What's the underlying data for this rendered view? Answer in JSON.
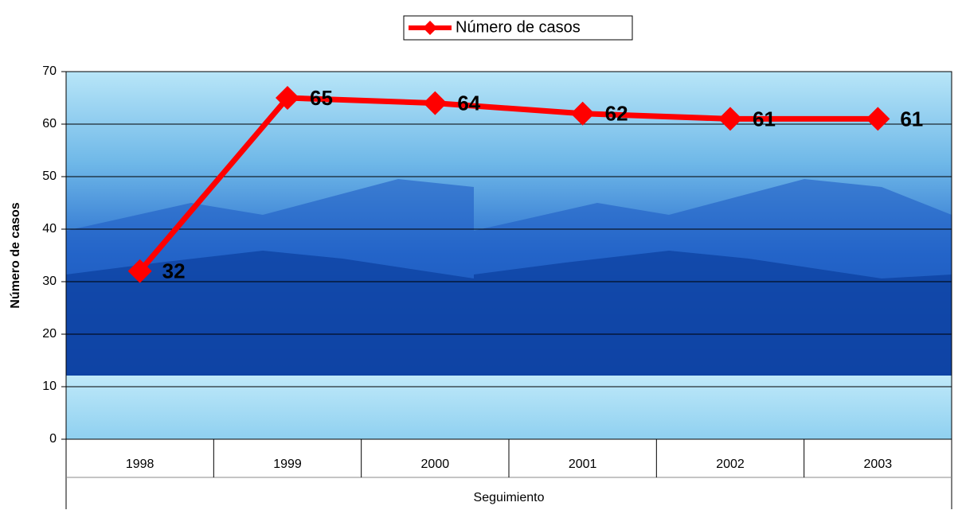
{
  "chart_data": {
    "type": "line",
    "categories": [
      "1998",
      "1999",
      "2000",
      "2001",
      "2002",
      "2003"
    ],
    "series": [
      {
        "name": "Número de casos",
        "color": "#ff0000",
        "values": [
          32,
          65,
          64,
          62,
          61,
          61
        ]
      }
    ],
    "y_label": "Número de casos",
    "x_label": "Seguimiento",
    "ylim": [
      0,
      70
    ],
    "yticks": [
      0,
      10,
      20,
      30,
      40,
      50,
      60,
      70
    ],
    "grid": true
  }
}
